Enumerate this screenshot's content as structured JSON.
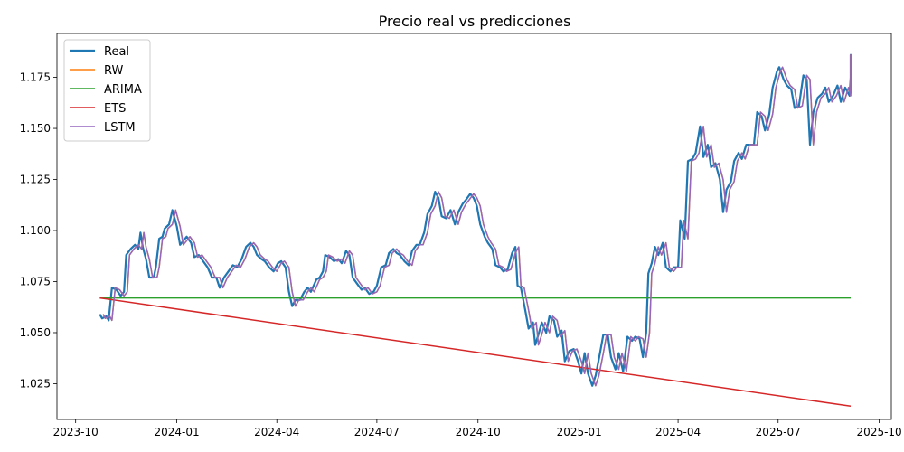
{
  "chart_data": {
    "type": "line",
    "title": "Precio real vs predicciones",
    "xlabel": "",
    "ylabel": "",
    "xlim": [
      "2023-09-14",
      "2025-10-12"
    ],
    "ylim": [
      1.0075,
      1.1965
    ],
    "x_ticks": [
      "2023-10",
      "2024-01",
      "2024-04",
      "2024-07",
      "2024-10",
      "2025-01",
      "2025-04",
      "2025-07",
      "2025-10"
    ],
    "y_ticks": [
      "1.025",
      "1.050",
      "1.075",
      "1.100",
      "1.125",
      "1.150",
      "1.175"
    ],
    "grid": false,
    "legend": "top-left",
    "series": [
      {
        "name": "Real",
        "color": "#1f77b4",
        "width": 2.2,
        "points": [
          [
            "2023-10-23",
            1.059
          ],
          [
            "2023-10-25",
            1.057
          ],
          [
            "2023-10-29",
            1.058
          ],
          [
            "2023-10-31",
            1.056
          ],
          [
            "2023-11-03",
            1.072
          ],
          [
            "2023-11-07",
            1.071
          ],
          [
            "2023-11-11",
            1.068
          ],
          [
            "2023-11-14",
            1.07
          ],
          [
            "2023-11-16",
            1.088
          ],
          [
            "2023-11-20",
            1.091
          ],
          [
            "2023-11-24",
            1.093
          ],
          [
            "2023-11-27",
            1.091
          ],
          [
            "2023-11-29",
            1.099
          ],
          [
            "2023-12-01",
            1.092
          ],
          [
            "2023-12-04",
            1.086
          ],
          [
            "2023-12-07",
            1.077
          ],
          [
            "2023-12-11",
            1.077
          ],
          [
            "2023-12-13",
            1.082
          ],
          [
            "2023-12-16",
            1.096
          ],
          [
            "2023-12-19",
            1.097
          ],
          [
            "2023-12-21",
            1.101
          ],
          [
            "2023-12-25",
            1.103
          ],
          [
            "2023-12-28",
            1.11
          ],
          [
            "2024-01-01",
            1.102
          ],
          [
            "2024-01-04",
            1.093
          ],
          [
            "2024-01-07",
            1.095
          ],
          [
            "2024-01-10",
            1.097
          ],
          [
            "2024-01-14",
            1.094
          ],
          [
            "2024-01-17",
            1.087
          ],
          [
            "2024-01-21",
            1.088
          ],
          [
            "2024-01-25",
            1.085
          ],
          [
            "2024-01-29",
            1.082
          ],
          [
            "2024-02-02",
            1.077
          ],
          [
            "2024-02-06",
            1.077
          ],
          [
            "2024-02-09",
            1.072
          ],
          [
            "2024-02-13",
            1.077
          ],
          [
            "2024-02-17",
            1.08
          ],
          [
            "2024-02-21",
            1.083
          ],
          [
            "2024-02-25",
            1.082
          ],
          [
            "2024-02-29",
            1.086
          ],
          [
            "2024-03-04",
            1.092
          ],
          [
            "2024-03-08",
            1.094
          ],
          [
            "2024-03-11",
            1.092
          ],
          [
            "2024-03-14",
            1.088
          ],
          [
            "2024-03-18",
            1.086
          ],
          [
            "2024-03-21",
            1.085
          ],
          [
            "2024-03-25",
            1.082
          ],
          [
            "2024-03-29",
            1.08
          ],
          [
            "2024-04-02",
            1.084
          ],
          [
            "2024-04-05",
            1.085
          ],
          [
            "2024-04-09",
            1.082
          ],
          [
            "2024-04-12",
            1.07
          ],
          [
            "2024-04-15",
            1.063
          ],
          [
            "2024-04-18",
            1.066
          ],
          [
            "2024-04-22",
            1.066
          ],
          [
            "2024-04-26",
            1.07
          ],
          [
            "2024-04-29",
            1.072
          ],
          [
            "2024-05-02",
            1.07
          ],
          [
            "2024-05-07",
            1.076
          ],
          [
            "2024-05-10",
            1.077
          ],
          [
            "2024-05-13",
            1.08
          ],
          [
            "2024-05-15",
            1.088
          ],
          [
            "2024-05-19",
            1.087
          ],
          [
            "2024-05-23",
            1.085
          ],
          [
            "2024-05-27",
            1.086
          ],
          [
            "2024-05-30",
            1.084
          ],
          [
            "2024-06-03",
            1.09
          ],
          [
            "2024-06-06",
            1.088
          ],
          [
            "2024-06-09",
            1.077
          ],
          [
            "2024-06-13",
            1.074
          ],
          [
            "2024-06-17",
            1.071
          ],
          [
            "2024-06-20",
            1.072
          ],
          [
            "2024-06-24",
            1.069
          ],
          [
            "2024-06-28",
            1.07
          ],
          [
            "2024-07-01",
            1.073
          ],
          [
            "2024-07-05",
            1.082
          ],
          [
            "2024-07-09",
            1.083
          ],
          [
            "2024-07-12",
            1.089
          ],
          [
            "2024-07-16",
            1.091
          ],
          [
            "2024-07-19",
            1.089
          ],
          [
            "2024-07-22",
            1.088
          ],
          [
            "2024-07-26",
            1.085
          ],
          [
            "2024-07-30",
            1.083
          ],
          [
            "2024-08-02",
            1.09
          ],
          [
            "2024-08-06",
            1.093
          ],
          [
            "2024-08-09",
            1.093
          ],
          [
            "2024-08-13",
            1.099
          ],
          [
            "2024-08-16",
            1.108
          ],
          [
            "2024-08-20",
            1.112
          ],
          [
            "2024-08-23",
            1.119
          ],
          [
            "2024-08-26",
            1.116
          ],
          [
            "2024-08-29",
            1.107
          ],
          [
            "2024-09-02",
            1.106
          ],
          [
            "2024-09-06",
            1.11
          ],
          [
            "2024-09-10",
            1.103
          ],
          [
            "2024-09-13",
            1.109
          ],
          [
            "2024-09-17",
            1.113
          ],
          [
            "2024-09-20",
            1.115
          ],
          [
            "2024-09-24",
            1.118
          ],
          [
            "2024-09-27",
            1.116
          ],
          [
            "2024-09-30",
            1.112
          ],
          [
            "2024-10-03",
            1.103
          ],
          [
            "2024-10-07",
            1.097
          ],
          [
            "2024-10-10",
            1.094
          ],
          [
            "2024-10-14",
            1.091
          ],
          [
            "2024-10-17",
            1.083
          ],
          [
            "2024-10-21",
            1.082
          ],
          [
            "2024-10-24",
            1.08
          ],
          [
            "2024-10-28",
            1.081
          ],
          [
            "2024-11-01",
            1.089
          ],
          [
            "2024-11-04",
            1.092
          ],
          [
            "2024-11-06",
            1.073
          ],
          [
            "2024-11-09",
            1.072
          ],
          [
            "2024-11-13",
            1.061
          ],
          [
            "2024-11-16",
            1.052
          ],
          [
            "2024-11-20",
            1.055
          ],
          [
            "2024-11-22",
            1.044
          ],
          [
            "2024-11-25",
            1.049
          ],
          [
            "2024-11-28",
            1.055
          ],
          [
            "2024-12-02",
            1.05
          ],
          [
            "2024-12-05",
            1.058
          ],
          [
            "2024-12-09",
            1.056
          ],
          [
            "2024-12-12",
            1.048
          ],
          [
            "2024-12-16",
            1.051
          ],
          [
            "2024-12-19",
            1.036
          ],
          [
            "2024-12-23",
            1.041
          ],
          [
            "2024-12-27",
            1.042
          ],
          [
            "2024-12-31",
            1.036
          ],
          [
            "2025-01-03",
            1.03
          ],
          [
            "2025-01-06",
            1.04
          ],
          [
            "2025-01-09",
            1.03
          ],
          [
            "2025-01-13",
            1.024
          ],
          [
            "2025-01-16",
            1.029
          ],
          [
            "2025-01-20",
            1.04
          ],
          [
            "2025-01-23",
            1.049
          ],
          [
            "2025-01-27",
            1.049
          ],
          [
            "2025-01-30",
            1.038
          ],
          [
            "2025-02-03",
            1.032
          ],
          [
            "2025-02-06",
            1.04
          ],
          [
            "2025-02-10",
            1.031
          ],
          [
            "2025-02-14",
            1.048
          ],
          [
            "2025-02-18",
            1.046
          ],
          [
            "2025-02-21",
            1.048
          ],
          [
            "2025-02-25",
            1.047
          ],
          [
            "2025-02-28",
            1.038
          ],
          [
            "2025-03-03",
            1.05
          ],
          [
            "2025-03-05",
            1.079
          ],
          [
            "2025-03-08",
            1.084
          ],
          [
            "2025-03-11",
            1.092
          ],
          [
            "2025-03-14",
            1.088
          ],
          [
            "2025-03-18",
            1.094
          ],
          [
            "2025-03-21",
            1.082
          ],
          [
            "2025-03-25",
            1.08
          ],
          [
            "2025-03-28",
            1.082
          ],
          [
            "2025-04-01",
            1.082
          ],
          [
            "2025-04-03",
            1.105
          ],
          [
            "2025-04-07",
            1.096
          ],
          [
            "2025-04-10",
            1.134
          ],
          [
            "2025-04-14",
            1.135
          ],
          [
            "2025-04-17",
            1.138
          ],
          [
            "2025-04-21",
            1.151
          ],
          [
            "2025-04-24",
            1.136
          ],
          [
            "2025-04-28",
            1.142
          ],
          [
            "2025-05-01",
            1.131
          ],
          [
            "2025-05-05",
            1.133
          ],
          [
            "2025-05-09",
            1.125
          ],
          [
            "2025-05-12",
            1.109
          ],
          [
            "2025-05-15",
            1.12
          ],
          [
            "2025-05-19",
            1.124
          ],
          [
            "2025-05-22",
            1.134
          ],
          [
            "2025-05-26",
            1.138
          ],
          [
            "2025-05-29",
            1.135
          ],
          [
            "2025-06-02",
            1.142
          ],
          [
            "2025-06-05",
            1.142
          ],
          [
            "2025-06-09",
            1.142
          ],
          [
            "2025-06-12",
            1.158
          ],
          [
            "2025-06-16",
            1.156
          ],
          [
            "2025-06-19",
            1.149
          ],
          [
            "2025-06-23",
            1.157
          ],
          [
            "2025-06-26",
            1.17
          ],
          [
            "2025-06-30",
            1.178
          ],
          [
            "2025-07-02",
            1.18
          ],
          [
            "2025-07-06",
            1.174
          ],
          [
            "2025-07-09",
            1.171
          ],
          [
            "2025-07-13",
            1.169
          ],
          [
            "2025-07-16",
            1.16
          ],
          [
            "2025-07-20",
            1.161
          ],
          [
            "2025-07-24",
            1.176
          ],
          [
            "2025-07-27",
            1.174
          ],
          [
            "2025-07-30",
            1.142
          ],
          [
            "2025-08-02",
            1.158
          ],
          [
            "2025-08-06",
            1.165
          ],
          [
            "2025-08-10",
            1.167
          ],
          [
            "2025-08-13",
            1.17
          ],
          [
            "2025-08-16",
            1.163
          ],
          [
            "2025-08-20",
            1.166
          ],
          [
            "2025-08-24",
            1.171
          ],
          [
            "2025-08-27",
            1.163
          ],
          [
            "2025-08-31",
            1.17
          ],
          [
            "2025-09-04",
            1.166
          ],
          [
            "2025-09-08",
            1.175
          ],
          [
            "2025-09-11",
            1.172
          ],
          [
            "2025-09-14",
            1.186
          ],
          [
            "2025-09-17",
            1.178
          ],
          [
            "2025-09-21",
            1.175
          ],
          [
            "2025-09-24",
            1.169
          ],
          [
            "2025-09-27",
            1.171
          ],
          [
            "2025-09-30",
            1.181
          ],
          [
            "2025-10-02",
            1.167
          ]
        ]
      },
      {
        "name": "RW",
        "color": "#ff7f0e",
        "width": 1.5,
        "lag_days": 3
      },
      {
        "name": "ARIMA",
        "color": "#2ca02c",
        "width": 1.5,
        "points": [
          [
            "2023-10-23",
            1.067
          ],
          [
            "2025-10-02",
            1.067
          ]
        ]
      },
      {
        "name": "ETS",
        "color": "#d62728",
        "width": 1.5,
        "points": [
          [
            "2023-10-23",
            1.067
          ],
          [
            "2025-10-02",
            1.014
          ]
        ]
      },
      {
        "name": "LSTM",
        "color": "#9467bd",
        "width": 1.5,
        "lag_days": 3
      }
    ]
  }
}
